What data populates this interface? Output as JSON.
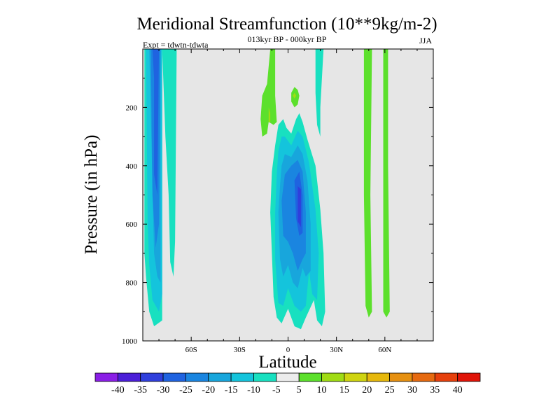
{
  "chart_data": {
    "type": "contour",
    "title": "Meridional Streamfunction (10**9kg/m-2)",
    "subtitle": "013kyr BP - 000kyr BP",
    "experiment": "Expt = tdwtn-tdwta",
    "season": "JJA",
    "xlabel": "Latitude",
    "ylabel": "Pressure (in hPa)",
    "xlim": [
      -90,
      90
    ],
    "ylim": [
      1000,
      0
    ],
    "x_ticks": [
      {
        "v": -60,
        "label": "60S"
      },
      {
        "v": -30,
        "label": "30S"
      },
      {
        "v": 0,
        "label": "0"
      },
      {
        "v": 30,
        "label": "30N"
      },
      {
        "v": 60,
        "label": "60N"
      }
    ],
    "y_ticks": [
      {
        "v": 200,
        "label": "200"
      },
      {
        "v": 400,
        "label": "400"
      },
      {
        "v": 600,
        "label": "600"
      },
      {
        "v": 800,
        "label": "800"
      },
      {
        "v": 1000,
        "label": "1000"
      }
    ],
    "colorbar": {
      "levels": [
        "-40",
        "-35",
        "-30",
        "-25",
        "-20",
        "-15",
        "-10",
        "-5",
        "5",
        "10",
        "15",
        "20",
        "25",
        "30",
        "35",
        "40"
      ],
      "colors": [
        "#8a1ee6",
        "#4b1fd8",
        "#2f3fdc",
        "#1f63e0",
        "#1a85e0",
        "#18a6dc",
        "#14c4dc",
        "#18e0c0",
        "#ececec",
        "#5ce02c",
        "#a0dc14",
        "#cfd410",
        "#e6b80c",
        "#e69010",
        "#e66a10",
        "#e6400c",
        "#e01408"
      ]
    },
    "regions": [
      {
        "value_range": "-10 to -5",
        "color": "#18e0c0",
        "points": [
          [
            -89,
            0
          ],
          [
            -78,
            0
          ],
          [
            -78,
            930
          ],
          [
            -83,
            950
          ],
          [
            -86,
            900
          ],
          [
            -88,
            780
          ],
          [
            -89,
            700
          ]
        ]
      },
      {
        "value_range": "-10 to -5",
        "color": "#18e0c0",
        "points": [
          [
            -78,
            0
          ],
          [
            -69,
            0
          ],
          [
            -70,
            660
          ],
          [
            -71,
            780
          ],
          [
            -73,
            730
          ],
          [
            -74,
            500
          ],
          [
            -76,
            300
          ]
        ]
      },
      {
        "value_range": "-15 to -10",
        "color": "#14c4dc",
        "points": [
          [
            -88,
            0
          ],
          [
            -78,
            0
          ],
          [
            -78,
            840
          ],
          [
            -80,
            900
          ],
          [
            -84,
            860
          ],
          [
            -86,
            740
          ],
          [
            -87,
            600
          ]
        ]
      },
      {
        "value_range": "-20 to -15",
        "color": "#18a6dc",
        "points": [
          [
            -86,
            0
          ],
          [
            -79,
            0
          ],
          [
            -79,
            800
          ],
          [
            -81,
            780
          ],
          [
            -83,
            700
          ]
        ]
      },
      {
        "value_range": "-25 to -20",
        "color": "#1a85e0",
        "points": [
          [
            -85,
            0
          ],
          [
            -79,
            0
          ],
          [
            -80,
            600
          ],
          [
            -82,
            680
          ],
          [
            -84,
            500
          ]
        ]
      },
      {
        "value_range": "-30 to -25",
        "color": "#1f63e0",
        "points": [
          [
            -84,
            0
          ],
          [
            -80,
            0
          ],
          [
            -81,
            500
          ],
          [
            -83,
            430
          ],
          [
            -83,
            100
          ]
        ]
      },
      {
        "value_range": "-10 to -5",
        "color": "#18e0c0",
        "points": [
          [
            -8,
            330
          ],
          [
            -6,
            260
          ],
          [
            -3,
            240
          ],
          [
            -1,
            270
          ],
          [
            2,
            290
          ],
          [
            5,
            240
          ],
          [
            7,
            220
          ],
          [
            9,
            250
          ],
          [
            12,
            310
          ],
          [
            17,
            400
          ],
          [
            20,
            550
          ],
          [
            22,
            700
          ],
          [
            23,
            900
          ],
          [
            21,
            950
          ],
          [
            18,
            930
          ],
          [
            16,
            860
          ],
          [
            11,
            920
          ],
          [
            8,
            960
          ],
          [
            4,
            950
          ],
          [
            0,
            890
          ],
          [
            -4,
            940
          ],
          [
            -7,
            920
          ],
          [
            -9,
            850
          ],
          [
            -10,
            700
          ],
          [
            -11,
            560
          ],
          [
            -10,
            420
          ]
        ]
      },
      {
        "value_range": "-10 to -5",
        "color": "#18e0c0",
        "points": [
          [
            17,
            0
          ],
          [
            22,
            0
          ],
          [
            21,
            100
          ],
          [
            20,
            200
          ],
          [
            20,
            300
          ],
          [
            18,
            260
          ],
          [
            17,
            150
          ]
        ]
      },
      {
        "value_range": "-15 to -10",
        "color": "#14c4dc",
        "points": [
          [
            -6,
            350
          ],
          [
            -4,
            300
          ],
          [
            -2,
            300
          ],
          [
            2,
            330
          ],
          [
            6,
            280
          ],
          [
            9,
            300
          ],
          [
            13,
            390
          ],
          [
            17,
            550
          ],
          [
            19,
            700
          ],
          [
            18,
            860
          ],
          [
            15,
            840
          ],
          [
            13,
            760
          ],
          [
            11,
            880
          ],
          [
            8,
            900
          ],
          [
            4,
            880
          ],
          [
            0,
            820
          ],
          [
            -3,
            880
          ],
          [
            -6,
            870
          ],
          [
            -8,
            720
          ],
          [
            -8,
            560
          ],
          [
            -7,
            430
          ]
        ]
      },
      {
        "value_range": "-20 to -15",
        "color": "#18a6dc",
        "points": [
          [
            -4,
            400
          ],
          [
            -2,
            360
          ],
          [
            2,
            370
          ],
          [
            6,
            330
          ],
          [
            9,
            360
          ],
          [
            12,
            450
          ],
          [
            14,
            600
          ],
          [
            14,
            760
          ],
          [
            11,
            780
          ],
          [
            9,
            750
          ],
          [
            6,
            820
          ],
          [
            3,
            800
          ],
          [
            0,
            740
          ],
          [
            -3,
            780
          ],
          [
            -5,
            720
          ],
          [
            -6,
            560
          ],
          [
            -5,
            470
          ]
        ]
      },
      {
        "value_range": "-25 to -20",
        "color": "#1a85e0",
        "points": [
          [
            -2,
            430
          ],
          [
            2,
            400
          ],
          [
            6,
            380
          ],
          [
            9,
            420
          ],
          [
            11,
            560
          ],
          [
            11,
            700
          ],
          [
            9,
            720
          ],
          [
            6,
            760
          ],
          [
            3,
            700
          ],
          [
            0,
            660
          ],
          [
            -3,
            640
          ],
          [
            -4,
            520
          ]
        ]
      },
      {
        "value_range": "-30 to -25",
        "color": "#1f63e0",
        "points": [
          [
            4,
            450
          ],
          [
            7,
            420
          ],
          [
            9,
            500
          ],
          [
            9,
            630
          ],
          [
            7,
            640
          ],
          [
            5,
            580
          ]
        ]
      },
      {
        "value_range": "-35 to -30",
        "color": "#2f3fdc",
        "points": [
          [
            6,
            470
          ],
          [
            8,
            480
          ],
          [
            8,
            610
          ],
          [
            6,
            590
          ]
        ]
      },
      {
        "value_range": "5 to 10",
        "color": "#5ce02c",
        "points": [
          [
            -11,
            0
          ],
          [
            -8,
            0
          ],
          [
            -8,
            160
          ],
          [
            -7,
            250
          ],
          [
            -9,
            260
          ],
          [
            -12,
            250
          ],
          [
            -13,
            290
          ],
          [
            -16,
            300
          ],
          [
            -17,
            240
          ],
          [
            -16,
            160
          ],
          [
            -13,
            120
          ]
        ]
      },
      {
        "value_range": "10 to 15",
        "color": "#a0dc14",
        "points": [
          [
            -12,
            200
          ],
          [
            -11,
            220
          ],
          [
            -11,
            250
          ],
          [
            -12,
            250
          ]
        ]
      },
      {
        "value_range": "5 to 10",
        "color": "#5ce02c",
        "points": [
          [
            2,
            150
          ],
          [
            4,
            130
          ],
          [
            6,
            140
          ],
          [
            7,
            160
          ],
          [
            6,
            190
          ],
          [
            4,
            200
          ],
          [
            2,
            180
          ]
        ]
      },
      {
        "value_range": "10 to 15",
        "color": "#a0dc14",
        "points": [
          [
            3,
            160
          ],
          [
            4,
            150
          ],
          [
            5,
            160
          ],
          [
            4,
            170
          ]
        ]
      },
      {
        "value_range": "5 to 10",
        "color": "#5ce02c",
        "points": [
          [
            47,
            0
          ],
          [
            52,
            0
          ],
          [
            51,
            500
          ],
          [
            52,
            900
          ],
          [
            50,
            920
          ],
          [
            48,
            880
          ],
          [
            47,
            500
          ]
        ]
      },
      {
        "value_range": "5 to 10",
        "color": "#5ce02c",
        "points": [
          [
            59,
            0
          ],
          [
            62,
            0
          ],
          [
            62,
            400
          ],
          [
            63,
            900
          ],
          [
            61,
            920
          ],
          [
            59,
            900
          ],
          [
            59,
            400
          ]
        ]
      }
    ]
  }
}
